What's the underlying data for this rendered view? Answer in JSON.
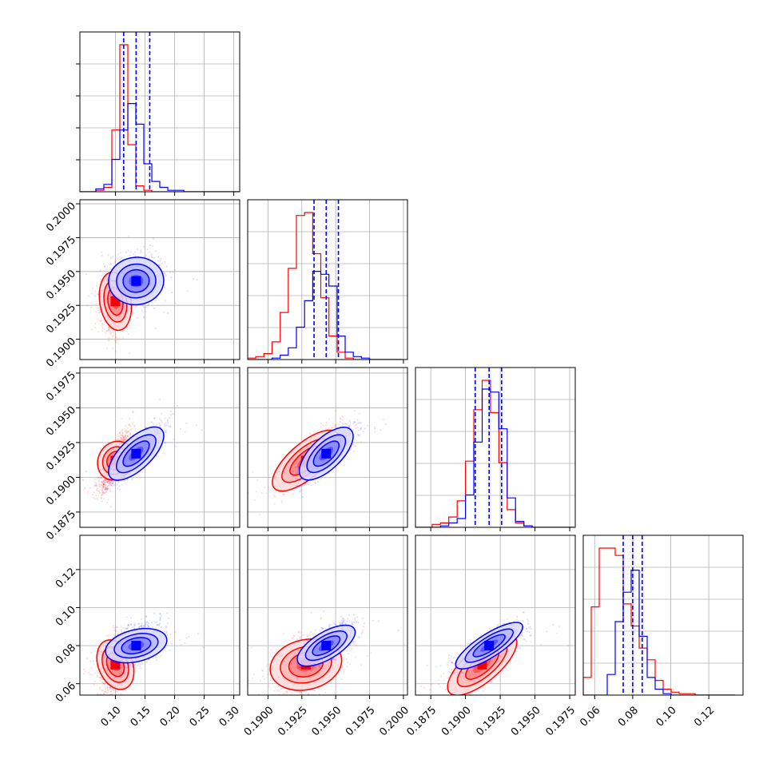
{
  "chart_data": {
    "type": "corner",
    "grid": true,
    "parameters": [
      {
        "index": 0,
        "range": [
          0.04,
          0.31
        ],
        "ticks": [
          0.1,
          0.15,
          0.2,
          0.25,
          0.3
        ],
        "tick_labels": [
          "0.10",
          "0.15",
          "0.20",
          "0.25",
          "0.30"
        ]
      },
      {
        "index": 1,
        "range": [
          0.1885,
          0.2003
        ],
        "ticks": [
          0.19,
          0.1925,
          0.195,
          0.1975,
          0.2
        ],
        "tick_labels": [
          "0.1900",
          "0.1925",
          "0.1950",
          "0.1975",
          "0.2000"
        ]
      },
      {
        "index": 2,
        "range": [
          0.1864,
          0.1979
        ],
        "ticks": [
          0.1875,
          0.19,
          0.1925,
          0.195,
          0.1975
        ],
        "tick_labels": [
          "0.1875",
          "0.1900",
          "0.1925",
          "0.1950",
          "0.1975"
        ]
      },
      {
        "index": 3,
        "range": [
          0.054,
          0.138
        ],
        "ticks": [
          0.06,
          0.08,
          0.1,
          0.12
        ],
        "tick_labels": [
          "0.06",
          "0.08",
          "0.10",
          "0.12"
        ]
      }
    ],
    "series": [
      {
        "color": "#ff0000",
        "mean": [
          0.1,
          0.1928,
          0.1912,
          0.07
        ],
        "std": [
          0.012,
          0.0011,
          0.0011,
          0.008
        ],
        "corr": [
          0.0,
          0.4,
          0.85,
          0.35
        ],
        "hist": [
          {
            "edges": [
              0.04,
              0.0535,
              0.067,
              0.0805,
              0.094,
              0.1075,
              0.121,
              0.1345,
              0.148,
              0.1615,
              0.175,
              0.1885,
              0.202,
              0.2155,
              0.229,
              0.2425,
              0.256,
              0.2695,
              0.283,
              0.2965,
              0.31
            ],
            "counts": [
              0,
              0,
              0.01,
              0.03,
              0.42,
              1.0,
              0.32,
              0.04,
              0.01,
              0,
              0,
              0,
              0,
              0,
              0,
              0,
              0,
              0,
              0,
              0
            ]
          },
          {
            "edges": [
              0.1885,
              0.1891,
              0.1897,
              0.1903,
              0.1909,
              0.1915,
              0.1921,
              0.1927,
              0.1933,
              0.1939,
              0.1945,
              0.1951,
              0.1957,
              0.1963,
              0.1969,
              0.1975,
              0.1981,
              0.1987,
              0.1993,
              0.1999
            ],
            "counts": [
              0.01,
              0.02,
              0.04,
              0.12,
              0.32,
              0.62,
              0.98,
              1.0,
              0.72,
              0.42,
              0.16,
              0.05,
              0.01,
              0,
              0,
              0,
              0,
              0,
              0
            ]
          },
          {
            "edges": [
              0.1864,
              0.187,
              0.1876,
              0.1882,
              0.1888,
              0.1894,
              0.19,
              0.1906,
              0.1912,
              0.1918,
              0.1924,
              0.193,
              0.1936,
              0.1942,
              0.1948,
              0.1954,
              0.196,
              0.1966,
              0.1972,
              0.1978
            ],
            "counts": [
              0,
              0,
              0.02,
              0.03,
              0.07,
              0.18,
              0.45,
              0.8,
              1.0,
              0.78,
              0.44,
              0.12,
              0.03,
              0.01,
              0,
              0,
              0,
              0,
              0
            ]
          },
          {
            "edges": [
              0.054,
              0.0582,
              0.0624,
              0.0666,
              0.0708,
              0.075,
              0.0792,
              0.0834,
              0.0876,
              0.0918,
              0.096,
              0.1002,
              0.1044,
              0.1086,
              0.1128,
              0.117,
              0.1212,
              0.1254,
              0.1296,
              0.1338
            ],
            "counts": [
              0.12,
              0.6,
              1.0,
              1.0,
              0.95,
              0.62,
              0.47,
              0.32,
              0.24,
              0.1,
              0.04,
              0.02,
              0.01,
              0.01,
              0,
              0,
              0,
              0,
              0
            ]
          }
        ]
      },
      {
        "color": "#0000ff",
        "mean": [
          0.135,
          0.1943,
          0.1917,
          0.08
        ],
        "std": [
          0.021,
          0.0009,
          0.001,
          0.0055
        ],
        "corr": [
          0.0,
          0.7,
          0.85,
          0.5
        ],
        "quantiles": [
          [
            0.114,
            0.135,
            0.158
          ],
          [
            0.1934,
            0.1943,
            0.1952
          ],
          [
            0.1907,
            0.1917,
            0.1926
          ],
          [
            0.075,
            0.08,
            0.085
          ]
        ],
        "hist": [
          {
            "edges": [
              0.04,
              0.0535,
              0.067,
              0.0805,
              0.094,
              0.1075,
              0.121,
              0.1345,
              0.148,
              0.1615,
              0.175,
              0.1885,
              0.202,
              0.2155,
              0.229,
              0.2425,
              0.256,
              0.2695,
              0.283,
              0.2965,
              0.31
            ],
            "counts": [
              0,
              0,
              0.02,
              0.05,
              0.22,
              0.42,
              0.6,
              0.46,
              0.19,
              0.07,
              0.03,
              0.01,
              0.01,
              0,
              0,
              0,
              0,
              0,
              0,
              0
            ]
          },
          {
            "edges": [
              0.1885,
              0.1891,
              0.1897,
              0.1903,
              0.1909,
              0.1915,
              0.1921,
              0.1927,
              0.1933,
              0.1939,
              0.1945,
              0.1951,
              0.1957,
              0.1963,
              0.1969,
              0.1975,
              0.1981,
              0.1987,
              0.1993,
              0.1999
            ],
            "counts": [
              0,
              0,
              0,
              0.01,
              0.03,
              0.08,
              0.22,
              0.4,
              0.6,
              0.58,
              0.5,
              0.16,
              0.05,
              0.02,
              0.01,
              0,
              0,
              0,
              0
            ]
          },
          {
            "edges": [
              0.1864,
              0.187,
              0.1876,
              0.1882,
              0.1888,
              0.1894,
              0.19,
              0.1906,
              0.1912,
              0.1918,
              0.1924,
              0.193,
              0.1936,
              0.1942,
              0.1948,
              0.1954,
              0.196,
              0.1966,
              0.1972,
              0.1978
            ],
            "counts": [
              0,
              0,
              0,
              0.01,
              0.03,
              0.06,
              0.22,
              0.58,
              0.94,
              0.92,
              0.67,
              0.2,
              0.04,
              0.01,
              0,
              0,
              0,
              0,
              0
            ]
          },
          {
            "edges": [
              0.054,
              0.0582,
              0.0624,
              0.0666,
              0.0708,
              0.075,
              0.0792,
              0.0834,
              0.0876,
              0.0918,
              0.096,
              0.1002,
              0.1044,
              0.1086,
              0.1128,
              0.117,
              0.1212,
              0.1254,
              0.1296,
              0.1338
            ],
            "counts": [
              0,
              0,
              0,
              0.14,
              0.5,
              0.7,
              0.85,
              0.4,
              0.12,
              0.04,
              0.01,
              0,
              0,
              0,
              0,
              0,
              0,
              0,
              0
            ]
          }
        ]
      }
    ]
  }
}
